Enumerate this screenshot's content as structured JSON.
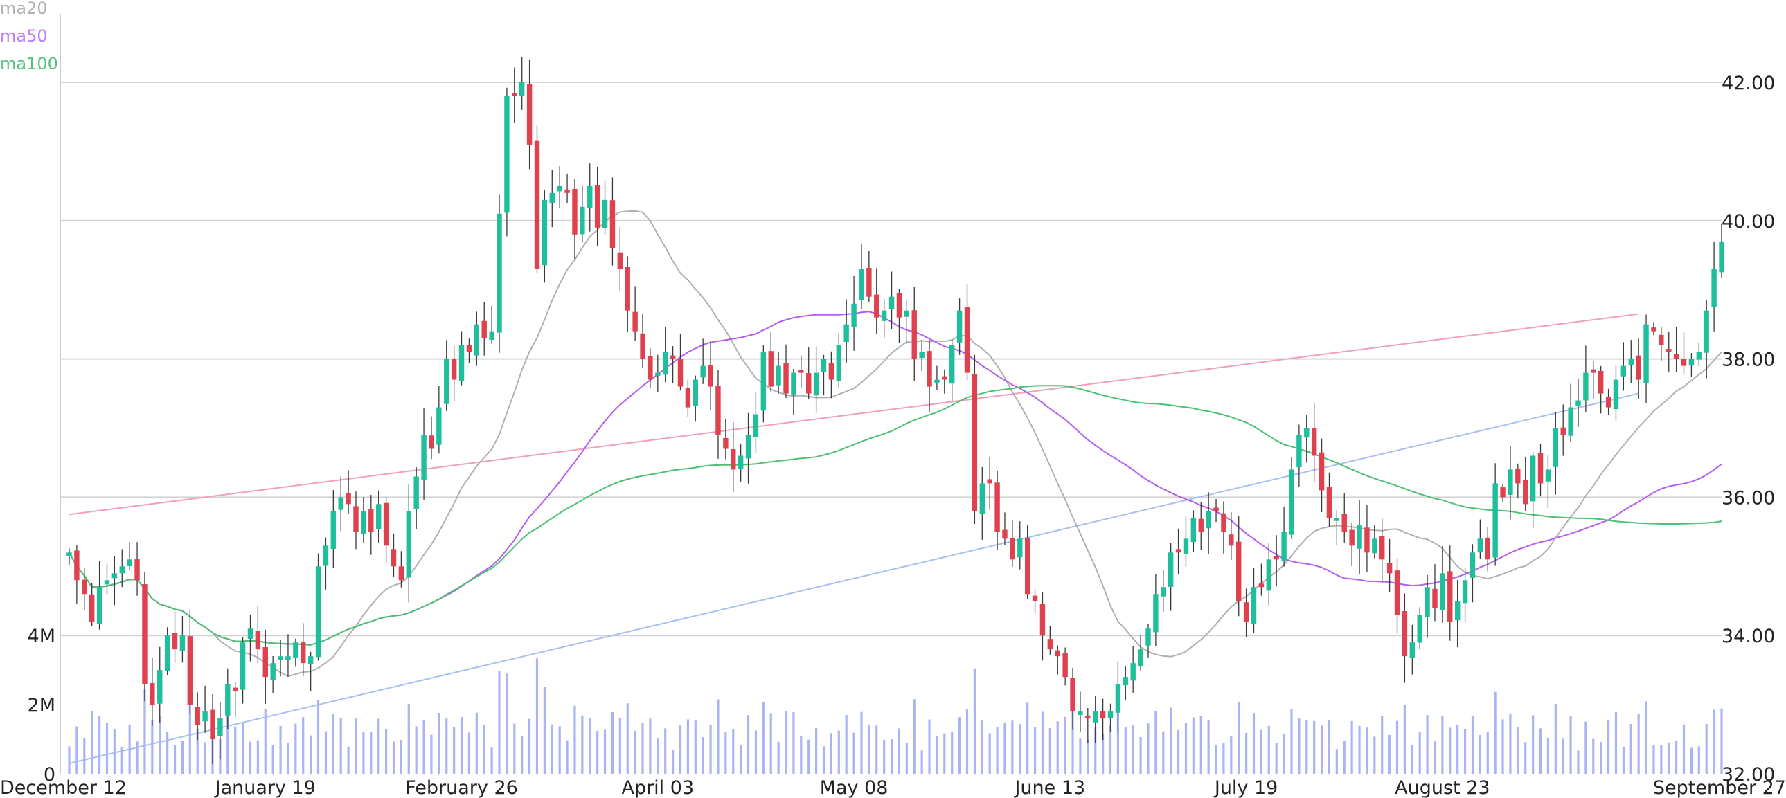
{
  "chart_data": {
    "type": "candlestick",
    "title": "",
    "legend": {
      "placement": "top-left",
      "items": [
        {
          "label": "ma20",
          "color": "#b0b0b0"
        },
        {
          "label": "ma50",
          "color": "#c27bf5"
        },
        {
          "label": "ma100",
          "color": "#55c27f"
        }
      ]
    },
    "colors": {
      "up": "#1fbf9c",
      "down": "#e0414f",
      "volume": "#aab4f5",
      "ma20": "#b0b0b0",
      "ma50": "#b45cf0",
      "ma100": "#4cc073",
      "trend_upper": "#f2a0b8",
      "trend_lower": "#a8c0f0",
      "grid": "#d3d3d3"
    },
    "x_axis": {
      "tick_labels": [
        "December 12",
        "January 19",
        "February 26",
        "April 03",
        "May 08",
        "June 13",
        "July 19",
        "August 23",
        "September 27"
      ],
      "tick_index": [
        0,
        26,
        52,
        78,
        104,
        130,
        156,
        182,
        208
      ]
    },
    "y_axis": {
      "range": [
        32.0,
        42.6
      ],
      "tick_labels": [
        "32.00",
        "34.00",
        "36.00",
        "38.00",
        "40.00",
        "42.00"
      ],
      "ticks": [
        32,
        34,
        36,
        38,
        40,
        42
      ],
      "grid": true
    },
    "volume_axis": {
      "range": [
        0,
        6000000
      ],
      "tick_labels": [
        "0",
        "2M",
        "4M"
      ],
      "ticks": [
        0,
        2000000,
        4000000
      ]
    },
    "trend_lines": [
      {
        "color": "trend_upper",
        "from": [
          0,
          35.75
        ],
        "to": [
          208,
          38.65
        ]
      },
      {
        "color": "trend_lower",
        "from": [
          0,
          32.15
        ],
        "to": [
          208,
          37.5
        ]
      }
    ],
    "closes": [
      35.2,
      34.8,
      34.6,
      34.2,
      34.7,
      34.8,
      34.9,
      35.0,
      35.1,
      34.8,
      33.3,
      33.0,
      33.5,
      34.0,
      33.8,
      34.0,
      33.0,
      32.7,
      32.9,
      32.5,
      32.8,
      33.3,
      33.2,
      33.9,
      34.1,
      33.8,
      33.4,
      33.6,
      33.7,
      33.7,
      33.9,
      33.6,
      33.7,
      35.0,
      35.3,
      35.8,
      36.0,
      35.9,
      35.5,
      35.8,
      35.5,
      35.9,
      35.3,
      35.0,
      34.8,
      35.8,
      36.3,
      36.9,
      36.7,
      37.3,
      38.0,
      37.7,
      38.2,
      38.1,
      38.5,
      38.3,
      38.4,
      40.1,
      41.8,
      41.8,
      42.0,
      41.1,
      39.3,
      40.3,
      40.4,
      40.5,
      40.4,
      39.8,
      40.2,
      40.5,
      39.9,
      40.3,
      39.6,
      39.3,
      38.7,
      38.4,
      38.0,
      37.7,
      37.8,
      38.1,
      38.0,
      37.6,
      37.3,
      37.7,
      37.9,
      37.6,
      36.9,
      36.7,
      36.4,
      36.6,
      36.9,
      37.2,
      38.1,
      37.6,
      37.9,
      37.5,
      37.8,
      37.8,
      37.5,
      37.8,
      38.0,
      37.7,
      38.2,
      38.5,
      38.8,
      39.3,
      38.9,
      38.6,
      38.7,
      38.9,
      38.6,
      38.7,
      38.0,
      38.1,
      37.6,
      37.7,
      37.7,
      38.2,
      38.7,
      37.8,
      35.8,
      36.2,
      36.2,
      35.5,
      35.4,
      35.1,
      35.4,
      34.6,
      34.5,
      34.0,
      33.8,
      33.7,
      33.4,
      32.9,
      32.9,
      32.8,
      32.9,
      32.8,
      32.9,
      33.3,
      33.4,
      33.6,
      33.8,
      34.1,
      34.6,
      34.7,
      35.2,
      35.2,
      35.4,
      35.7,
      35.5,
      35.8,
      35.8,
      35.5,
      35.3,
      34.5,
      34.2,
      34.7,
      34.7,
      35.1,
      35.1,
      35.5,
      36.4,
      36.9,
      37.0,
      36.6,
      36.1,
      35.7,
      35.7,
      35.5,
      35.3,
      35.6,
      35.2,
      35.4,
      35.1,
      34.9,
      34.3,
      33.7,
      33.9,
      34.3,
      34.7,
      34.4,
      34.9,
      34.2,
      34.5,
      34.8,
      35.2,
      35.4,
      35.1,
      36.2,
      36.0,
      36.4,
      36.2,
      35.9,
      36.6,
      36.2,
      36.4,
      37.0,
      36.9,
      37.3,
      37.4,
      37.8,
      37.8,
      37.5,
      37.3,
      37.7,
      37.9,
      38.0,
      37.7,
      38.5,
      38.4,
      38.2,
      38.1,
      38.0,
      37.9,
      38.0,
      38.1,
      38.7,
      39.3,
      39.7
    ]
  }
}
